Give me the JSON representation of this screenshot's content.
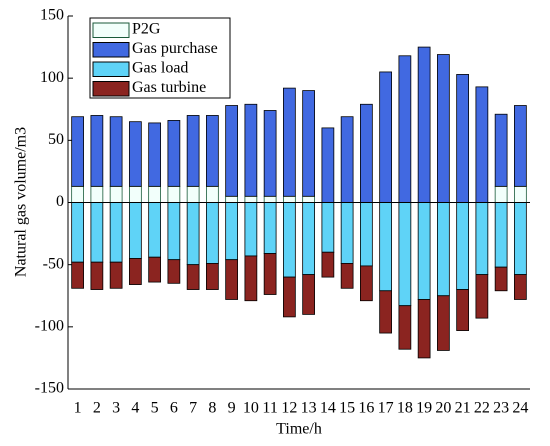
{
  "chart_data": {
    "type": "bar",
    "stacked": true,
    "x_label": "Time/h",
    "y_label": "Natural gas volume/m3",
    "categories": [
      "1",
      "2",
      "3",
      "4",
      "5",
      "6",
      "7",
      "8",
      "9",
      "10",
      "11",
      "12",
      "13",
      "14",
      "15",
      "16",
      "17",
      "18",
      "19",
      "20",
      "21",
      "22",
      "23",
      "24"
    ],
    "series": [
      {
        "name": "P2G",
        "color": "#f2fffb",
        "values": [
          13,
          13,
          13,
          13,
          13,
          13,
          13,
          13,
          5,
          5,
          5,
          5,
          5,
          0,
          0,
          0,
          0,
          0,
          0,
          0,
          0,
          0,
          13,
          13
        ]
      },
      {
        "name": "Gas purchase",
        "color": "#4169e1",
        "values": [
          56,
          57,
          56,
          52,
          51,
          53,
          57,
          57,
          73,
          74,
          69,
          87,
          85,
          60,
          69,
          79,
          105,
          118,
          125,
          119,
          103,
          93,
          58,
          65
        ]
      },
      {
        "name": "Gas load",
        "color": "#5fd3f7",
        "values": [
          -48,
          -48,
          -48,
          -45,
          -44,
          -46,
          -50,
          -49,
          -46,
          -43,
          -41,
          -60,
          -58,
          -40,
          -49,
          -51,
          -71,
          -83,
          -78,
          -75,
          -70,
          -58,
          -52,
          -58
        ]
      },
      {
        "name": "Gas turbine",
        "color": "#8b2420",
        "values": [
          -21,
          -22,
          -21,
          -21,
          -20,
          -19,
          -20,
          -21,
          -32,
          -36,
          -33,
          -32,
          -32,
          -20,
          -20,
          -28,
          -34,
          -35,
          -47,
          -44,
          -33,
          -35,
          -19,
          -20
        ]
      }
    ],
    "ylim": [
      -150,
      150
    ],
    "yticks": [
      -150,
      -100,
      -50,
      0,
      50,
      100,
      150
    ],
    "legend": "upper left"
  }
}
